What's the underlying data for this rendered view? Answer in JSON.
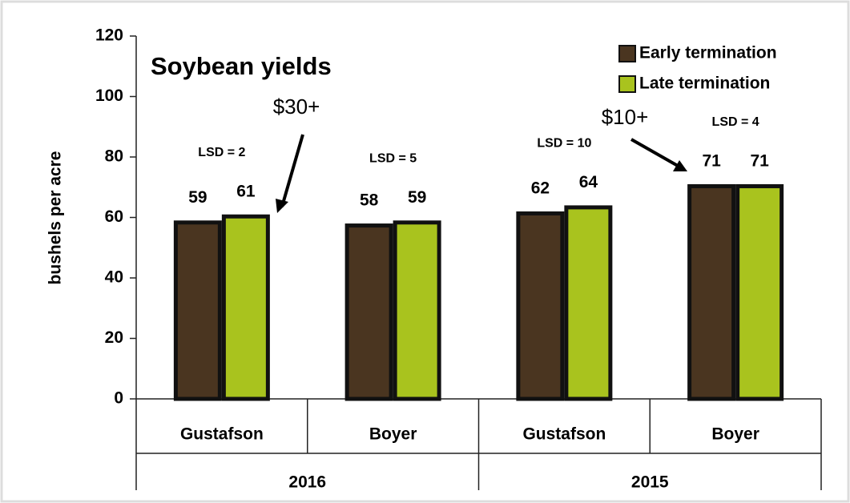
{
  "chart_data": {
    "type": "bar",
    "title": "Soybean yields",
    "ylabel": "bushels per acre",
    "categories": [
      "Gustafson",
      "Boyer",
      "Gustafson",
      "Boyer"
    ],
    "groups": [
      "2016",
      "2015"
    ],
    "series": [
      {
        "name": "Early termination",
        "color": "#4a3520",
        "values": [
          59,
          58,
          62,
          71
        ]
      },
      {
        "name": "Late termination",
        "color": "#a9c31e",
        "values": [
          61,
          59,
          64,
          71
        ]
      }
    ],
    "category_labels": [
      "LSD = 2",
      "LSD = 5",
      "LSD = 10",
      "LSD = 4"
    ],
    "annotations": [
      "$30+",
      "$10+"
    ],
    "ylim": [
      0,
      120
    ],
    "yticks": [
      0,
      20,
      40,
      60,
      80,
      100,
      120
    ],
    "legend": "upper right"
  }
}
